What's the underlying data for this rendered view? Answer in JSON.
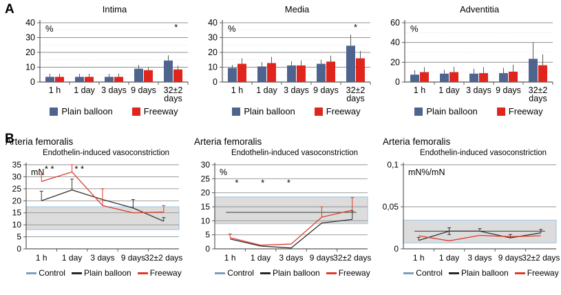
{
  "panels": {
    "a_label": "A",
    "b_label": "B"
  },
  "colors": {
    "plain_balloon_bar": "#4e648e",
    "freeway_bar": "#e0261c",
    "control_line": "#7d9cbf",
    "plain_balloon_line": "#333333",
    "freeway_line": "#dd3a28",
    "band_fill": "#dcdcdc",
    "band_border": "#aecfe9",
    "grid": "#909090",
    "minor_grid": "#c8c8c8",
    "axis": "#595959",
    "error": "#595959"
  },
  "legend_a": [
    {
      "label": "Plain balloon",
      "color": "#4e648e"
    },
    {
      "label": "Freeway",
      "color": "#e0261c"
    }
  ],
  "legend_b": [
    {
      "label": "Control",
      "color": "#7d9cbf"
    },
    {
      "label": "Plain balloon",
      "color": "#262626"
    },
    {
      "label": "Freeway",
      "color": "#dd3a28"
    }
  ],
  "chart_data": [
    {
      "id": "intima",
      "panel": "A",
      "type": "bar",
      "title": "Intima",
      "unit": "%",
      "ylim": [
        0,
        40
      ],
      "yticks": [
        0,
        10,
        20,
        30,
        40
      ],
      "minor_yticks": [
        5,
        15,
        25,
        35
      ],
      "categories": [
        "1 h",
        "1 day",
        "3 days",
        "9 days",
        [
          "32±2",
          "days"
        ]
      ],
      "series": [
        {
          "name": "Plain balloon",
          "color": "#4e648e",
          "values": [
            3.5,
            3.5,
            3.5,
            9,
            14.5
          ],
          "errors_up": [
            2,
            2,
            2,
            2.5,
            3.5
          ]
        },
        {
          "name": "Freeway",
          "color": "#e0261c",
          "values": [
            3.5,
            3.5,
            3.5,
            8,
            8.5
          ],
          "errors_up": [
            2,
            2,
            2.3,
            2,
            2.5
          ]
        }
      ],
      "annotations": [
        {
          "text": "*",
          "cat": 4.1,
          "y": 35
        }
      ]
    },
    {
      "id": "media",
      "panel": "A",
      "type": "bar",
      "title": "Media",
      "unit": "%",
      "ylim": [
        0,
        40
      ],
      "yticks": [
        0,
        10,
        20,
        30,
        40
      ],
      "minor_yticks": [
        5,
        15,
        25,
        35
      ],
      "categories": [
        "1 h",
        "1 day",
        "3 days",
        "9 days",
        [
          "32±2",
          "days"
        ]
      ],
      "series": [
        {
          "name": "Plain balloon",
          "color": "#4e648e",
          "values": [
            9.5,
            10.5,
            11.2,
            12.3,
            24.5
          ],
          "errors_up": [
            2,
            3,
            2.8,
            2.7,
            7.5
          ]
        },
        {
          "name": "Freeway",
          "color": "#e0261c",
          "values": [
            12.3,
            12.8,
            11.2,
            13.8,
            16
          ],
          "errors_up": [
            3.7,
            4.2,
            3.3,
            4,
            5
          ]
        }
      ],
      "annotations": [
        {
          "text": "*",
          "cat": 4,
          "y": 35
        }
      ]
    },
    {
      "id": "adventitia",
      "panel": "A",
      "type": "bar",
      "title": "Adventitia",
      "unit": "%",
      "ylim": [
        0,
        60
      ],
      "yticks": [
        0,
        20,
        40,
        60
      ],
      "minor_yticks": [
        10,
        30,
        50
      ],
      "categories": [
        "1 h",
        "1 day",
        "3 days",
        "9 days",
        [
          "32±2",
          "days"
        ]
      ],
      "series": [
        {
          "name": "Plain balloon",
          "color": "#4e648e",
          "values": [
            7.5,
            8.5,
            8.5,
            9,
            23.5
          ],
          "errors_up": [
            4.5,
            4,
            5,
            5.5,
            17
          ]
        },
        {
          "name": "Freeway",
          "color": "#e0261c",
          "values": [
            10,
            10,
            9,
            10.5,
            17
          ],
          "errors_up": [
            5,
            5.5,
            6,
            7,
            11
          ]
        }
      ],
      "annotations": []
    },
    {
      "id": "femoralis-mn",
      "panel": "B",
      "type": "line",
      "heading": "Arteria femoralis",
      "title": "Endothelin-induced vasoconstriction",
      "unit": "mN",
      "ylim": [
        0,
        35
      ],
      "yticks": [
        0,
        5,
        10,
        15,
        20,
        25,
        30,
        35
      ],
      "ytick_labels": [
        "0",
        "5",
        "10",
        "15",
        "20",
        "25",
        "30",
        "35"
      ],
      "categories": [
        "1 h",
        "1 day",
        "3 days",
        "9 days",
        "32±2 days"
      ],
      "control_band": [
        8,
        17.5
      ],
      "control_mean": null,
      "series": [
        {
          "name": "Plain balloon",
          "color": "#333333",
          "values": [
            20,
            24.5,
            20.5,
            17,
            11.5
          ],
          "errors_up": [
            4,
            4.5,
            0,
            3.5,
            1.5
          ]
        },
        {
          "name": "Freeway",
          "color": "#dd3a28",
          "values": [
            28,
            32,
            18,
            15,
            15.3
          ],
          "errors_up": [
            3,
            3,
            7,
            0,
            2.7
          ]
        }
      ],
      "annotations": [
        {
          "text": "* *",
          "cat": 0.26,
          "y": 32
        },
        {
          "text": "* *",
          "cat": 1.24,
          "y": 32
        }
      ]
    },
    {
      "id": "femoralis-pct",
      "panel": "B",
      "type": "line",
      "heading": "Arteria femoralis",
      "title": "Endothelin-induced vasoconstriction",
      "unit": "%",
      "ylim": [
        0,
        30
      ],
      "yticks": [
        0,
        5,
        10,
        15,
        20,
        25,
        30
      ],
      "ytick_labels": [
        "0",
        "5",
        "10",
        "15",
        "20",
        "25",
        "30"
      ],
      "categories": [
        "1 h",
        "1 day",
        "3 days",
        "9 days",
        "32±2 days"
      ],
      "control_band": [
        9,
        18.5
      ],
      "control_mean": 13,
      "series": [
        {
          "name": "Plain balloon",
          "color": "#333333",
          "values": [
            3.5,
            1,
            0.3,
            9.2,
            10.5
          ],
          "errors_up": [
            0,
            0,
            0,
            0,
            3
          ]
        },
        {
          "name": "Freeway",
          "color": "#dd3a28",
          "values": [
            4,
            1.3,
            1.7,
            11.3,
            13.8
          ],
          "errors_up": [
            1.3,
            0,
            0,
            3.7,
            4.5
          ]
        }
      ],
      "annotations": [
        {
          "text": "*",
          "cat": 0.22,
          "y": 22.5
        },
        {
          "text": "*",
          "cat": 1.07,
          "y": 22.5
        },
        {
          "text": "*",
          "cat": 1.92,
          "y": 22.5
        }
      ]
    },
    {
      "id": "femoralis-ratio",
      "panel": "B",
      "type": "line",
      "heading": "Arteria femoralis",
      "title": "Endothelin-induced vasoconstriction",
      "unit": "mN%/mN",
      "ylim": [
        0,
        0.1
      ],
      "yticks": [
        0,
        0.05,
        0.1
      ],
      "ytick_labels": [
        "0",
        "0,05",
        "0,1"
      ],
      "categories": [
        "1 h",
        "1 day",
        "3 days",
        "9 days",
        "32±2 days"
      ],
      "control_band": [
        0.007,
        0.034
      ],
      "control_mean": 0.021,
      "series": [
        {
          "name": "Plain balloon",
          "color": "#333333",
          "values": [
            0.01,
            0.021,
            0.021,
            0.013,
            0.019
          ],
          "errors_up": [
            0.0035,
            0.004,
            0.003,
            0.004,
            0.004
          ],
          "errors_down": [
            0,
            0.004,
            0,
            0,
            0
          ]
        },
        {
          "name": "Freeway",
          "color": "#dd3a28",
          "values": [
            0.0155,
            0.0095,
            0.016,
            0.0145,
            0.0155
          ],
          "errors_up": [
            0,
            0,
            0,
            0,
            0
          ]
        }
      ],
      "annotations": []
    }
  ]
}
